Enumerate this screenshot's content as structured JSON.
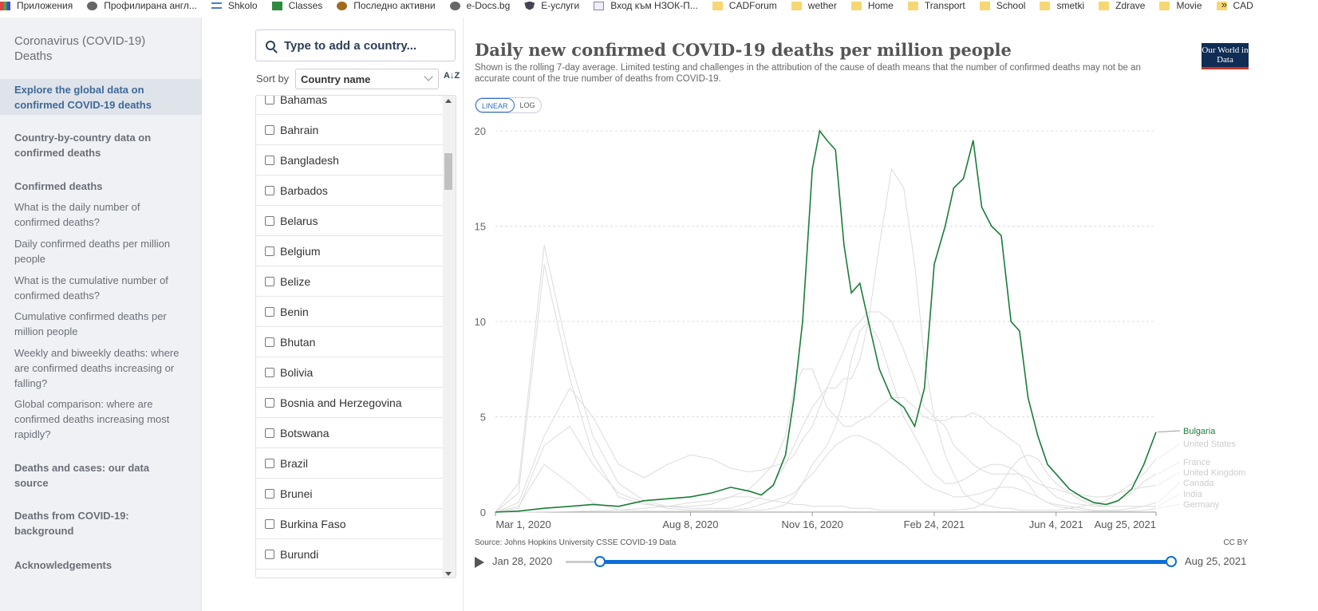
{
  "bookmarks": [
    {
      "label": "Приложения",
      "icon": "grid"
    },
    {
      "label": "Профилирана англ...",
      "icon": "globe"
    },
    {
      "label": "Shkolo",
      "icon": "lines"
    },
    {
      "label": "Classes",
      "icon": "classroom"
    },
    {
      "label": "Последно активни",
      "icon": "m"
    },
    {
      "label": "e-Docs.bg",
      "icon": "globe"
    },
    {
      "label": "Е-услуги",
      "icon": "shield"
    },
    {
      "label": "Вход към НЗОК-П...",
      "icon": "page"
    },
    {
      "label": "CADForum",
      "icon": "folder"
    },
    {
      "label": "wether",
      "icon": "folder"
    },
    {
      "label": "Home",
      "icon": "folder"
    },
    {
      "label": "Transport",
      "icon": "folder"
    },
    {
      "label": "School",
      "icon": "folder"
    },
    {
      "label": "smetki",
      "icon": "folder"
    },
    {
      "label": "Zdrave",
      "icon": "folder"
    },
    {
      "label": "Movie",
      "icon": "folder"
    },
    {
      "label": "CAD",
      "icon": "folder"
    }
  ],
  "bookmarks_more": "»",
  "sidebar": {
    "title": "Coronavirus (COVID-19) Deaths",
    "active": "Explore the global data on confirmed COVID-19 deaths",
    "items": [
      {
        "label": "Country-by-country data on confirmed deaths",
        "bold": true
      },
      {
        "label": "Confirmed deaths",
        "bold": true
      },
      {
        "label": "What is the daily number of confirmed deaths?",
        "bold": false
      },
      {
        "label": "Daily confirmed deaths per million people",
        "bold": false
      },
      {
        "label": "What is the cumulative number of confirmed deaths?",
        "bold": false
      },
      {
        "label": "Cumulative confirmed deaths per million people",
        "bold": false
      },
      {
        "label": "Weekly and biweekly deaths: where are confirmed deaths increasing or falling?",
        "bold": false
      },
      {
        "label": "Global comparison: where are confirmed deaths increasing most rapidly?",
        "bold": false
      },
      {
        "label": "Deaths and cases: our data source",
        "bold": true
      },
      {
        "label": "Deaths from COVID-19: background",
        "bold": true
      },
      {
        "label": "Acknowledgements",
        "bold": true
      }
    ]
  },
  "country_panel": {
    "search_placeholder": "Type to add a country...",
    "sort_label": "Sort by",
    "sort_value": "Country name",
    "sort_dir_icon": "A↓Z",
    "countries": [
      "Bahamas",
      "Bahrain",
      "Bangladesh",
      "Barbados",
      "Belarus",
      "Belgium",
      "Belize",
      "Benin",
      "Bhutan",
      "Bolivia",
      "Bosnia and Herzegovina",
      "Botswana",
      "Brazil",
      "Brunei",
      "Burkina Faso",
      "Burundi"
    ]
  },
  "chart": {
    "title": "Daily new confirmed COVID-19 deaths per million people",
    "subtitle": "Shown is the rolling 7-day average. Limited testing and challenges in the attribution of the cause of death means that the number of confirmed deaths may not be an accurate count of the true number of deaths from COVID-19.",
    "logo": "Our World in Data",
    "toggle": {
      "linear": "LINEAR",
      "log": "LOG"
    },
    "source": "Source: Johns Hopkins University CSSE COVID-19 Data",
    "license": "CC BY",
    "timeline_start": "Jan 28, 2020",
    "timeline_end": "Aug 25, 2021",
    "colors": {
      "highlight": "#1a7d37",
      "muted": "#dcdcdc",
      "grid": "#dddddd",
      "accent": "#0b6fd8"
    }
  },
  "chart_data": {
    "type": "line",
    "title": "Daily new confirmed COVID-19 deaths per million people",
    "ylim": [
      0,
      20
    ],
    "yticks": [
      0,
      5,
      10,
      15,
      20
    ],
    "xticks": [
      "Mar 1, 2020",
      "Aug 8, 2020",
      "Nov 16, 2020",
      "Feb 24, 2021",
      "Jun 4, 2021",
      "Aug 25, 2021"
    ],
    "x": [
      "2020-03-01",
      "2020-03-20",
      "2020-04-10",
      "2020-05-01",
      "2020-05-20",
      "2020-06-10",
      "2020-07-01",
      "2020-07-20",
      "2020-08-08",
      "2020-08-25",
      "2020-09-10",
      "2020-09-25",
      "2020-10-05",
      "2020-10-15",
      "2020-10-25",
      "2020-11-01",
      "2020-11-08",
      "2020-11-16",
      "2020-11-22",
      "2020-11-28",
      "2020-12-05",
      "2020-12-12",
      "2020-12-18",
      "2020-12-25",
      "2021-01-01",
      "2021-01-10",
      "2021-01-20",
      "2021-01-30",
      "2021-02-08",
      "2021-02-16",
      "2021-02-24",
      "2021-03-05",
      "2021-03-12",
      "2021-03-20",
      "2021-03-28",
      "2021-04-04",
      "2021-04-12",
      "2021-04-20",
      "2021-04-28",
      "2021-05-05",
      "2021-05-12",
      "2021-05-20",
      "2021-05-28",
      "2021-06-04",
      "2021-06-15",
      "2021-06-25",
      "2021-07-05",
      "2021-07-15",
      "2021-07-25",
      "2021-08-05",
      "2021-08-15",
      "2021-08-25"
    ],
    "series": [
      {
        "name": "Bulgaria",
        "highlight": true,
        "values": [
          0,
          0.05,
          0.2,
          0.3,
          0.4,
          0.3,
          0.6,
          0.7,
          0.8,
          1.0,
          1.3,
          1.1,
          0.9,
          1.4,
          3.0,
          6.0,
          10.0,
          18.0,
          20.0,
          19.5,
          19.0,
          14.0,
          11.5,
          12.0,
          10.0,
          7.5,
          6.0,
          5.5,
          4.5,
          6.5,
          13.0,
          15.0,
          17.0,
          17.5,
          19.5,
          16.0,
          15.0,
          14.5,
          10.0,
          9.5,
          6.0,
          4.0,
          2.5,
          2.0,
          1.2,
          0.8,
          0.5,
          0.4,
          0.6,
          1.2,
          2.5,
          4.2
        ]
      },
      {
        "name": "United States",
        "highlight": false,
        "values": [
          0,
          0.5,
          4.0,
          6.5,
          5.0,
          2.5,
          1.8,
          2.5,
          3.0,
          2.8,
          2.3,
          2.1,
          2.2,
          2.4,
          2.6,
          3.0,
          3.8,
          4.5,
          5.5,
          6.5,
          7.5,
          8.5,
          9.5,
          10.0,
          10.5,
          10.5,
          10.0,
          8.5,
          7.0,
          5.5,
          5.0,
          4.5,
          3.5,
          3.0,
          2.5,
          2.2,
          2.0,
          2.0,
          2.0,
          2.0,
          1.8,
          1.5,
          1.3,
          1.2,
          1.0,
          0.9,
          0.8,
          0.8,
          1.0,
          1.5,
          2.0,
          2.8
        ]
      },
      {
        "name": "France",
        "highlight": false,
        "values": [
          0,
          1.0,
          13.0,
          7.0,
          3.0,
          0.8,
          0.4,
          0.3,
          0.3,
          0.4,
          0.8,
          1.2,
          1.8,
          2.5,
          4.0,
          6.5,
          7.5,
          7.5,
          6.5,
          5.5,
          5.0,
          4.5,
          4.5,
          4.8,
          5.0,
          5.5,
          6.0,
          6.0,
          5.5,
          5.0,
          4.8,
          4.8,
          5.0,
          5.0,
          5.2,
          5.0,
          4.5,
          4.2,
          3.8,
          3.5,
          2.5,
          1.8,
          1.2,
          0.8,
          0.5,
          0.4,
          0.3,
          0.3,
          0.6,
          1.0,
          1.6,
          2.0
        ]
      },
      {
        "name": "United Kingdom",
        "highlight": false,
        "values": [
          0,
          1.5,
          14.0,
          8.0,
          4.0,
          1.5,
          0.6,
          0.3,
          0.2,
          0.2,
          0.2,
          0.5,
          0.8,
          1.5,
          2.5,
          3.5,
          4.5,
          5.5,
          6.0,
          6.5,
          6.5,
          7.0,
          7.0,
          8.0,
          10.0,
          14.0,
          18.0,
          17.0,
          13.0,
          8.0,
          5.0,
          3.0,
          2.0,
          1.0,
          0.6,
          0.4,
          0.3,
          0.2,
          0.2,
          0.1,
          0.1,
          0.1,
          0.1,
          0.1,
          0.2,
          0.3,
          0.4,
          0.6,
          1.0,
          1.2,
          1.3,
          1.4
        ]
      },
      {
        "name": "Canada",
        "highlight": false,
        "values": [
          0,
          0.2,
          3.5,
          4.5,
          2.5,
          1.0,
          0.5,
          0.2,
          0.1,
          0.1,
          0.1,
          0.2,
          0.4,
          0.6,
          0.8,
          1.0,
          1.5,
          2.0,
          2.5,
          3.0,
          3.5,
          3.8,
          4.0,
          4.0,
          3.8,
          3.5,
          3.0,
          2.5,
          2.0,
          1.5,
          1.2,
          1.0,
          0.8,
          0.8,
          0.9,
          1.0,
          1.2,
          1.3,
          1.3,
          1.2,
          1.0,
          0.8,
          0.5,
          0.4,
          0.3,
          0.2,
          0.1,
          0.1,
          0.1,
          0.2,
          0.3,
          0.5
        ]
      },
      {
        "name": "India",
        "highlight": false,
        "values": [
          0,
          0,
          0.01,
          0.03,
          0.05,
          0.1,
          0.2,
          0.3,
          0.5,
          0.6,
          0.8,
          0.8,
          0.7,
          0.6,
          0.5,
          0.4,
          0.4,
          0.3,
          0.3,
          0.3,
          0.3,
          0.3,
          0.2,
          0.2,
          0.2,
          0.1,
          0.1,
          0.1,
          0.1,
          0.1,
          0.1,
          0.1,
          0.1,
          0.15,
          0.2,
          0.4,
          0.8,
          1.5,
          2.3,
          2.8,
          3.0,
          2.8,
          2.0,
          1.5,
          1.0,
          0.6,
          0.4,
          0.3,
          0.3,
          0.3,
          0.3,
          0.3
        ]
      },
      {
        "name": "Germany",
        "highlight": false,
        "values": [
          0,
          0.3,
          2.5,
          1.5,
          0.5,
          0.1,
          0.05,
          0.05,
          0.05,
          0.05,
          0.05,
          0.1,
          0.1,
          0.2,
          0.4,
          0.8,
          1.5,
          2.5,
          3.0,
          3.5,
          4.5,
          6.0,
          8.0,
          9.5,
          10.0,
          9.0,
          7.0,
          5.0,
          4.0,
          3.0,
          2.0,
          1.5,
          1.5,
          1.7,
          2.0,
          2.3,
          2.5,
          2.5,
          2.3,
          2.0,
          1.5,
          0.8,
          0.5,
          0.3,
          0.2,
          0.1,
          0.05,
          0.05,
          0.05,
          0.05,
          0.1,
          0.2
        ]
      }
    ]
  }
}
